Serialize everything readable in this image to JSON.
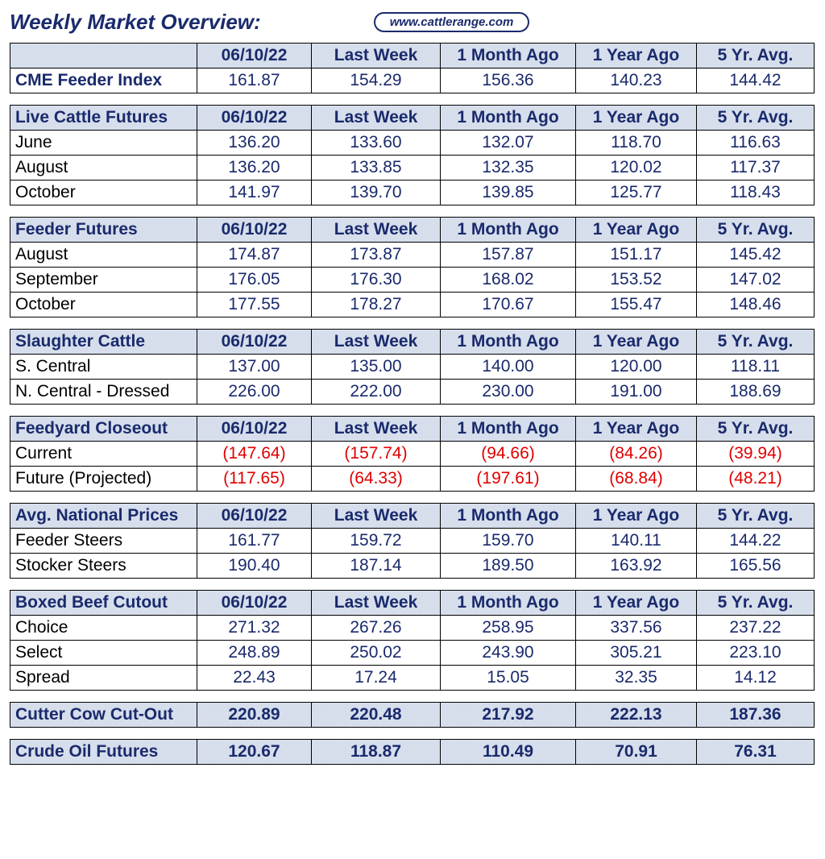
{
  "title": "Weekly Market Overview:",
  "website": "www.cattlerange.com",
  "columns": [
    "06/10/22",
    "Last Week",
    "1 Month Ago",
    "1 Year Ago",
    "5 Yr. Avg."
  ],
  "colors": {
    "heading": "#1a2a6c",
    "value": "#1a2a6c",
    "negative": "#e00000",
    "header_bg": "#d8e0ed",
    "border": "#000000",
    "background": "#ffffff"
  },
  "typography": {
    "title_fontsize": 26,
    "cell_fontsize": 21,
    "font_family": "Arial"
  },
  "sections": [
    {
      "name": "CME Feeder Index",
      "blank_header_label": true,
      "rows": [
        {
          "label": "CME Feeder Index",
          "bold": true,
          "values": [
            "161.87",
            "154.29",
            "156.36",
            "140.23",
            "144.42"
          ]
        }
      ]
    },
    {
      "name": "Live Cattle Futures",
      "rows": [
        {
          "label": "June",
          "values": [
            "136.20",
            "133.60",
            "132.07",
            "118.70",
            "116.63"
          ]
        },
        {
          "label": "August",
          "values": [
            "136.20",
            "133.85",
            "132.35",
            "120.02",
            "117.37"
          ]
        },
        {
          "label": "October",
          "values": [
            "141.97",
            "139.70",
            "139.85",
            "125.77",
            "118.43"
          ]
        }
      ]
    },
    {
      "name": "Feeder Futures",
      "rows": [
        {
          "label": "August",
          "values": [
            "174.87",
            "173.87",
            "157.87",
            "151.17",
            "145.42"
          ]
        },
        {
          "label": "September",
          "values": [
            "176.05",
            "176.30",
            "168.02",
            "153.52",
            "147.02"
          ]
        },
        {
          "label": "October",
          "values": [
            "177.55",
            "178.27",
            "170.67",
            "155.47",
            "148.46"
          ]
        }
      ]
    },
    {
      "name": "Slaughter Cattle",
      "rows": [
        {
          "label": "S. Central",
          "values": [
            "137.00",
            "135.00",
            "140.00",
            "120.00",
            "118.11"
          ]
        },
        {
          "label": "N. Central - Dressed",
          "values": [
            "226.00",
            "222.00",
            "230.00",
            "191.00",
            "188.69"
          ]
        }
      ]
    },
    {
      "name": "Feedyard Closeout",
      "rows": [
        {
          "label": "Current",
          "values": [
            "(147.64)",
            "(157.74)",
            "(94.66)",
            "(84.26)",
            "(39.94)"
          ],
          "negative": true
        },
        {
          "label": "Future (Projected)",
          "values": [
            "(117.65)",
            "(64.33)",
            "(197.61)",
            "(68.84)",
            "(48.21)"
          ],
          "negative": true
        }
      ]
    },
    {
      "name": "Avg. National Prices",
      "rows": [
        {
          "label": "Feeder Steers",
          "values": [
            "161.77",
            "159.72",
            "159.70",
            "140.11",
            "144.22"
          ]
        },
        {
          "label": "Stocker Steers",
          "values": [
            "190.40",
            "187.14",
            "189.50",
            "163.92",
            "165.56"
          ]
        }
      ]
    },
    {
      "name": "Boxed Beef Cutout",
      "rows": [
        {
          "label": "Choice",
          "values": [
            "271.32",
            "267.26",
            "258.95",
            "337.56",
            "237.22"
          ]
        },
        {
          "label": "Select",
          "values": [
            "248.89",
            "250.02",
            "243.90",
            "305.21",
            "223.10"
          ]
        },
        {
          "label": " Spread",
          "values": [
            "22.43",
            "17.24",
            "15.05",
            "32.35",
            "14.12"
          ]
        }
      ]
    },
    {
      "name": "Cutter Cow Cut-Out",
      "single_row": true,
      "rows": [
        {
          "label": "Cutter Cow Cut-Out",
          "bold": true,
          "values": [
            "220.89",
            "220.48",
            "217.92",
            "222.13",
            "187.36"
          ]
        }
      ]
    },
    {
      "name": "Crude Oil Futures",
      "single_row": true,
      "rows": [
        {
          "label": "Crude Oil Futures",
          "bold": true,
          "values": [
            "120.67",
            "118.87",
            "110.49",
            "70.91",
            "76.31"
          ]
        }
      ]
    }
  ]
}
